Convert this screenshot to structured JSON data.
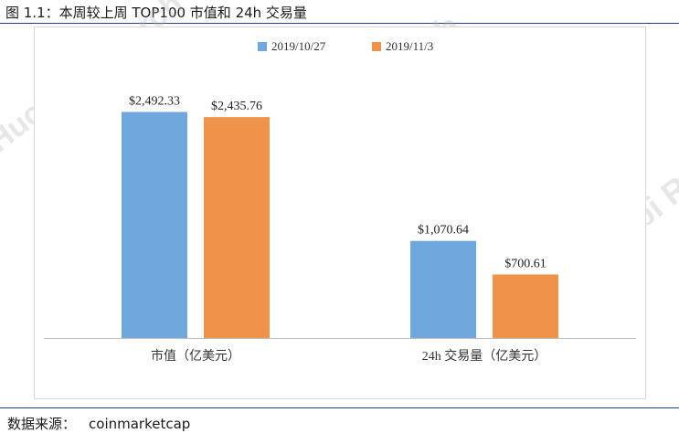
{
  "figure": {
    "title": "图 1.1：本周较上周 TOP100 市值和 24h 交易量",
    "source_label": "数据来源：",
    "source_value": "coinmarketcap",
    "watermark_text": "Huobi Research"
  },
  "colors": {
    "series_1": "#6fa8dc",
    "series_2": "#f0934a",
    "rule": "#1f3f7f",
    "axis": "#bfbfbf"
  },
  "chart_data": {
    "type": "bar",
    "categories": [
      "市值（亿美元）",
      "24h 交易量（亿美元）"
    ],
    "series": [
      {
        "name": "2019/10/27",
        "values": [
          2492.33,
          1070.64
        ],
        "labels": [
          "$2,492.33",
          "$1,070.64"
        ]
      },
      {
        "name": "2019/11/3",
        "values": [
          2435.76,
          700.61
        ],
        "labels": [
          "$2,435.76",
          "$700.61"
        ]
      }
    ],
    "ylim": [
      0,
      2800
    ],
    "legend": "top",
    "grid": false
  }
}
